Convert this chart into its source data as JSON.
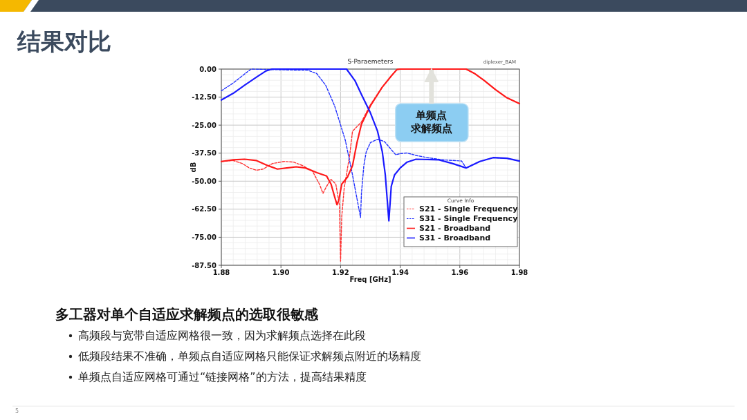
{
  "chart_data": {
    "type": "line",
    "title": "S-Paraemeters",
    "xlabel": "Freq [GHz]",
    "ylabel": "dB",
    "legend_title": "Curve Info",
    "legend": "bottom right",
    "grid": true,
    "marker": "none",
    "xlim": [
      1.88,
      1.98
    ],
    "ylim": [
      -87.5,
      0
    ],
    "xticks": [
      {
        "value": 1.88,
        "label": "1.88"
      },
      {
        "value": 1.9,
        "label": "1.90"
      },
      {
        "value": 1.92,
        "label": "1.92"
      },
      {
        "value": 1.94,
        "label": "1.94"
      },
      {
        "value": 1.96,
        "label": "1.96"
      },
      {
        "value": 1.98,
        "label": "1.98"
      }
    ],
    "yticks": [
      {
        "value": 0,
        "label": "0.00"
      },
      {
        "value": -12.5,
        "label": "-12.50"
      },
      {
        "value": -25,
        "label": "-25.00"
      },
      {
        "value": -37.5,
        "label": "-37.50"
      },
      {
        "value": -50,
        "label": "-50.00"
      },
      {
        "value": -62.5,
        "label": "-62.50"
      },
      {
        "value": -75,
        "label": "-75.00"
      },
      {
        "value": -87.5,
        "label": "-87.50"
      }
    ],
    "series": [
      {
        "name": "S21 - Single Frequency",
        "color": "#ff3030",
        "line_style": "dashed",
        "x": [
          1.88,
          1.884,
          1.887,
          1.8894,
          1.8918,
          1.894,
          1.8972,
          1.9012,
          1.9043,
          1.9074,
          1.9106,
          1.9129,
          1.9141,
          1.9153,
          1.9168,
          1.9184,
          1.9196,
          1.92,
          1.9204,
          1.9212,
          1.9231,
          1.924,
          1.927,
          1.93,
          1.9339,
          1.937,
          1.9389,
          1.94,
          1.9621,
          1.9651,
          1.9682,
          1.972,
          1.9758,
          1.98
        ],
        "values": [
          -41.2,
          -40.8,
          -42.1,
          -44.1,
          -45.1,
          -44.6,
          -42.1,
          -41.2,
          -41.5,
          -43.1,
          -45.6,
          -51.3,
          -55.4,
          -52.3,
          -49.2,
          -51.3,
          -60.5,
          -85.7,
          -65.7,
          -53.3,
          -38,
          -27.7,
          -23.6,
          -15.9,
          -8.2,
          -3.1,
          -0.2,
          0,
          0,
          -2.1,
          -5.1,
          -9.2,
          -12.8,
          -15.4
        ]
      },
      {
        "name": "S31 - Single Frequency",
        "color": "#2030ff",
        "line_style": "dashed",
        "x": [
          1.88,
          1.884,
          1.888,
          1.89,
          1.906,
          1.909,
          1.912,
          1.915,
          1.918,
          1.9216,
          1.924,
          1.9267,
          1.927,
          1.9278,
          1.9286,
          1.93,
          1.9324,
          1.9347,
          1.937,
          1.9385,
          1.94,
          1.9423,
          1.9453,
          1.9491,
          1.9545,
          1.9606,
          1.9621,
          1.9667,
          1.9712,
          1.9758,
          1.98
        ],
        "values": [
          -9.7,
          -6.2,
          -2,
          0,
          -0.5,
          -0.5,
          -2,
          -7.2,
          -16.4,
          -31.8,
          -47.2,
          -66.2,
          -55.4,
          -43.1,
          -36.9,
          -32.8,
          -31.3,
          -32.3,
          -35.9,
          -38.2,
          -37.7,
          -37.4,
          -38.5,
          -39.5,
          -40.5,
          -41,
          -44.1,
          -41.2,
          -39.5,
          -39.8,
          -41
        ]
      },
      {
        "name": "S21 - Broadband",
        "color": "#ff1a1a",
        "line_style": "solid",
        "x": [
          1.88,
          1.884,
          1.8878,
          1.8918,
          1.8957,
          1.8988,
          1.902,
          1.9051,
          1.9082,
          1.9121,
          1.9153,
          1.9168,
          1.918,
          1.9188,
          1.9194,
          1.9204,
          1.9223,
          1.924,
          1.9255,
          1.927,
          1.93,
          1.9339,
          1.937,
          1.9389,
          1.94,
          1.9621,
          1.9651,
          1.9682,
          1.972,
          1.9758,
          1.98
        ],
        "values": [
          -41.2,
          -40.5,
          -40.2,
          -40.8,
          -43.1,
          -44.6,
          -44.1,
          -43.6,
          -44.1,
          -46.2,
          -47.7,
          -51.3,
          -56.9,
          -60.5,
          -58.5,
          -51.3,
          -48.2,
          -43.1,
          -32.8,
          -24.6,
          -16.4,
          -8.2,
          -3.1,
          -0.2,
          0,
          0,
          -2.1,
          -5.1,
          -9.2,
          -12.8,
          -15.4
        ]
      },
      {
        "name": "S31 - Broadband",
        "color": "#1a1aff",
        "line_style": "solid",
        "x": [
          1.88,
          1.884,
          1.8878,
          1.8918,
          1.895,
          1.897,
          1.922,
          1.9248,
          1.927,
          1.93,
          1.9324,
          1.934,
          1.935,
          1.9362,
          1.937,
          1.9381,
          1.94,
          1.9423,
          1.9453,
          1.953,
          1.9575,
          1.9621,
          1.9667,
          1.9712,
          1.9758,
          1.98
        ],
        "values": [
          -13.8,
          -10.8,
          -7.2,
          -3.6,
          -0.8,
          0,
          0,
          -5.1,
          -11.3,
          -19.5,
          -27.7,
          -36.9,
          -47.2,
          -67.7,
          -52.3,
          -47.2,
          -44.1,
          -41.5,
          -40.2,
          -40.5,
          -42.1,
          -44.1,
          -41.2,
          -39.5,
          -39.8,
          -41
        ]
      }
    ],
    "annotations": [
      "结果对比",
      "diplexer_BAM",
      {
        "text": "单频点求解频点",
        "x": 1.9505,
        "y": 0
      },
      "多工器对单个自适应求解频点的选取很敏感",
      "高频段与宽带自适应网格很一致，因为求解频点选择在此段",
      "低频段结果不准确，单频点自适应网格只能保证求解频点附近的场精度",
      "单频点自适应网格可通过“链接网格”的方法，提高结果精度",
      "5"
    ]
  }
}
